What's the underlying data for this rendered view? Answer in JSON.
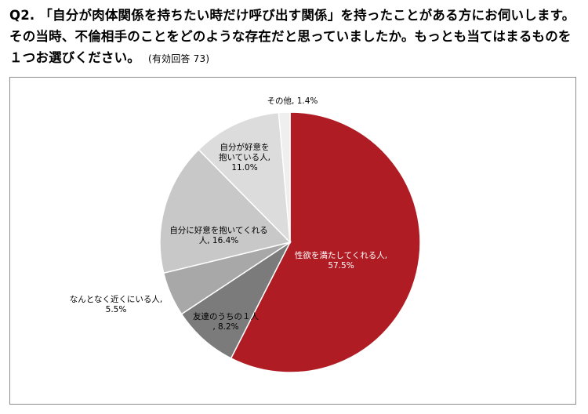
{
  "question": {
    "number": "Q2.",
    "text": "「自分が肉体関係を持ちたい時だけ呼び出す関係」を持ったことがある方にお伺いします。その当時、不倫相手のことをどのような存在だと思っていましたか。もっとも当てはまるものを１つお選びください。",
    "note": "(有効回答 73)"
  },
  "chart_data": {
    "type": "pie",
    "start_angle_deg": 0,
    "direction": "clockwise",
    "slices": [
      {
        "label": "性欲を満たしてくれる人",
        "value": 57.5,
        "pct_text": "57.5%",
        "color": "#b01c24",
        "text_color": "#ffffff"
      },
      {
        "label": "友達のうちの１人",
        "value": 8.2,
        "pct_text": "8.2%",
        "color": "#7b7b7b",
        "text_color": "#000000"
      },
      {
        "label": "なんとなく近くにいる人",
        "value": 5.5,
        "pct_text": "5.5%",
        "color": "#a8a8a8",
        "text_color": "#000000"
      },
      {
        "label": "自分に好意を抱いてくれる人",
        "value": 16.4,
        "pct_text": "16.4%",
        "color": "#c8c8c8",
        "text_color": "#000000"
      },
      {
        "label": "自分が好意を抱いている人",
        "value": 11.0,
        "pct_text": "11.0%",
        "color": "#dcdcdc",
        "text_color": "#000000"
      },
      {
        "label": "その他",
        "value": 1.4,
        "pct_text": "1.4%",
        "color": "#efefef",
        "text_color": "#000000"
      }
    ]
  }
}
